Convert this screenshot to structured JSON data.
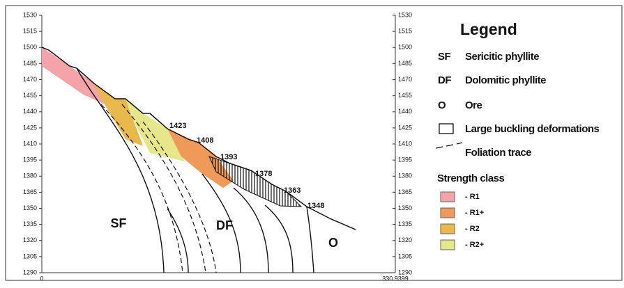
{
  "axes": {
    "left_ticks": [
      1530,
      1515,
      1500,
      1485,
      1470,
      1455,
      1440,
      1425,
      1410,
      1395,
      1380,
      1365,
      1350,
      1335,
      1320,
      1305,
      1290
    ],
    "right_ticks": [
      1530,
      1515,
      1500,
      1485,
      1470,
      1455,
      1440,
      1425,
      1410,
      1395,
      1380,
      1365,
      1350,
      1335,
      1320,
      1305,
      1290
    ],
    "x_ticks": [
      0,
      330.9399
    ]
  },
  "elevation_labels": [
    1423,
    1408,
    1393,
    1378,
    1363,
    1348
  ],
  "zones": [
    "SF",
    "DF",
    "O"
  ],
  "legend": {
    "title": "Legend",
    "items": [
      {
        "code": "SF",
        "label": "Sericitic phyllite"
      },
      {
        "code": "DF",
        "label": "Dolomitic phyllite"
      },
      {
        "code": "O",
        "label": "Ore"
      },
      {
        "label": "Large buckling deformations"
      },
      {
        "label": "Foliation trace"
      }
    ],
    "strength_title": "Strength class",
    "classes": [
      {
        "label": "- R1",
        "color": "#f4a3a8"
      },
      {
        "label": "- R1+",
        "color": "#f09a5a"
      },
      {
        "label": "- R2",
        "color": "#e8b84a"
      },
      {
        "label": "- R2+",
        "color": "#e6e68a"
      }
    ]
  }
}
